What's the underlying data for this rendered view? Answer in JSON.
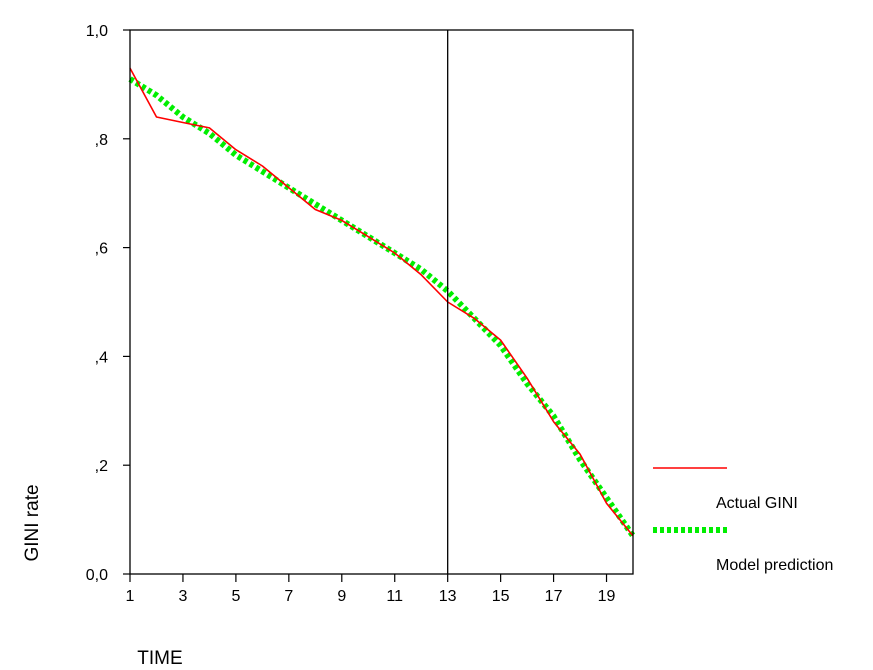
{
  "chart_data": {
    "type": "line",
    "xlabel": "TIME",
    "ylabel": "GINI rate",
    "xlim": [
      1,
      20
    ],
    "ylim": [
      0,
      1
    ],
    "x_ticks": [
      1,
      3,
      5,
      7,
      9,
      11,
      13,
      15,
      17,
      19
    ],
    "x_tick_labels": [
      "1",
      "3",
      "5",
      "7",
      "9",
      "11",
      "13",
      "15",
      "17",
      "19"
    ],
    "y_ticks": [
      0,
      0.2,
      0.4,
      0.6,
      0.8,
      1.0
    ],
    "y_tick_labels": [
      "0,0",
      ",2",
      ",4",
      ",6",
      ",8",
      "1,0"
    ],
    "reference_line_x": 13,
    "grid": false,
    "legend_position": "right",
    "x": [
      1,
      2,
      3,
      4,
      5,
      6,
      7,
      8,
      9,
      10,
      11,
      12,
      13,
      14,
      15,
      16,
      17,
      18,
      19,
      20
    ],
    "series": [
      {
        "name": "Actual GINI",
        "color": "#ff0000",
        "style": "solid",
        "values": [
          0.93,
          0.84,
          0.83,
          0.82,
          0.78,
          0.75,
          0.71,
          0.67,
          0.65,
          0.62,
          0.59,
          0.55,
          0.5,
          0.47,
          0.43,
          0.36,
          0.28,
          0.22,
          0.13,
          0.07
        ]
      },
      {
        "name": "Model prediction",
        "color": "#00ee00",
        "style": "dotted",
        "values": [
          0.91,
          0.88,
          0.84,
          0.81,
          0.77,
          0.74,
          0.71,
          0.68,
          0.65,
          0.62,
          0.59,
          0.56,
          0.52,
          0.47,
          0.42,
          0.35,
          0.29,
          0.21,
          0.14,
          0.07
        ]
      }
    ]
  }
}
